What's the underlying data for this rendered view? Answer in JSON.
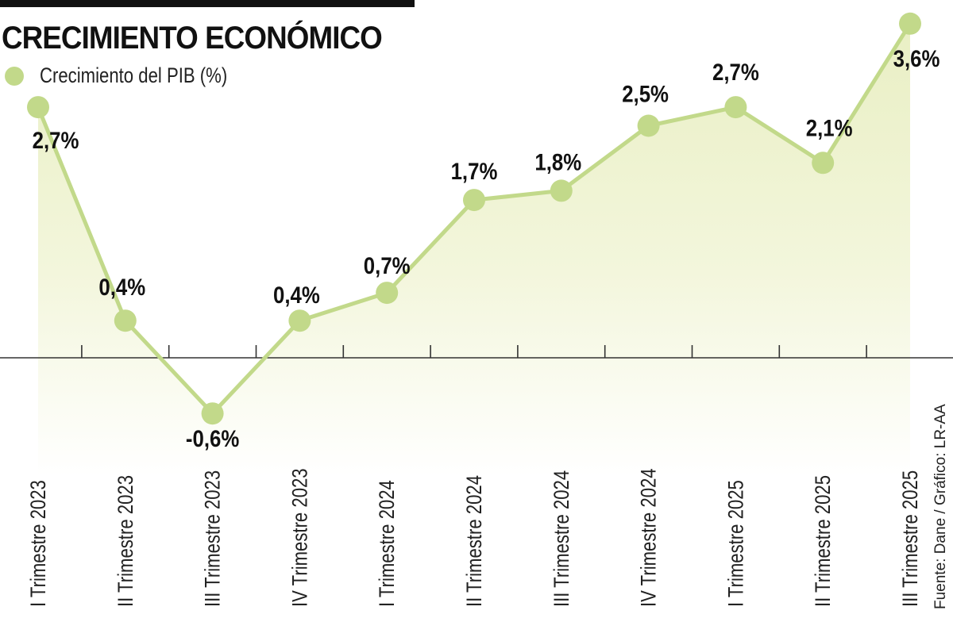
{
  "header": {
    "title": "CRECIMIENTO ECONÓMICO",
    "legend_label": "Crecimiento del PIB (%)"
  },
  "footer": {
    "source": "Fuente: Dane / Gráfico: LR-AA"
  },
  "colors": {
    "line": "#c2d98a",
    "fill": "#eef2cf",
    "axis": "#333333",
    "text": "#111111"
  },
  "chart_data": {
    "type": "area",
    "title": "CRECIMIENTO ECONÓMICO",
    "xlabel": "",
    "ylabel": "",
    "legend": [
      "Crecimiento del PIB (%)"
    ],
    "legend_position": "top-left",
    "grid": false,
    "categories": [
      "I Trimestre 2023",
      "II Trimestre 2023",
      "III Trimestre 2023",
      "IV Trimestre 2023",
      "I Trimestre 2024",
      "II Trimestre 2024",
      "III Trimestre 2024",
      "IV Trimestre 2024",
      "I Trimestre 2025",
      "II Trimestre 2025",
      "III Trimestre 2025"
    ],
    "series": [
      {
        "name": "Crecimiento del PIB (%)",
        "values": [
          2.7,
          0.4,
          -0.6,
          0.4,
          0.7,
          1.7,
          1.8,
          2.5,
          2.7,
          2.1,
          3.6
        ],
        "labels": [
          "2,7%",
          "0,4%",
          "-0,6%",
          "0,4%",
          "0,7%",
          "1,7%",
          "1,8%",
          "2,5%",
          "2,7%",
          "2,1%",
          "3,6%"
        ]
      }
    ],
    "ylim": [
      -0.8,
      3.8
    ],
    "annotation": "Fuente: Dane / Gráfico: LR-AA"
  }
}
